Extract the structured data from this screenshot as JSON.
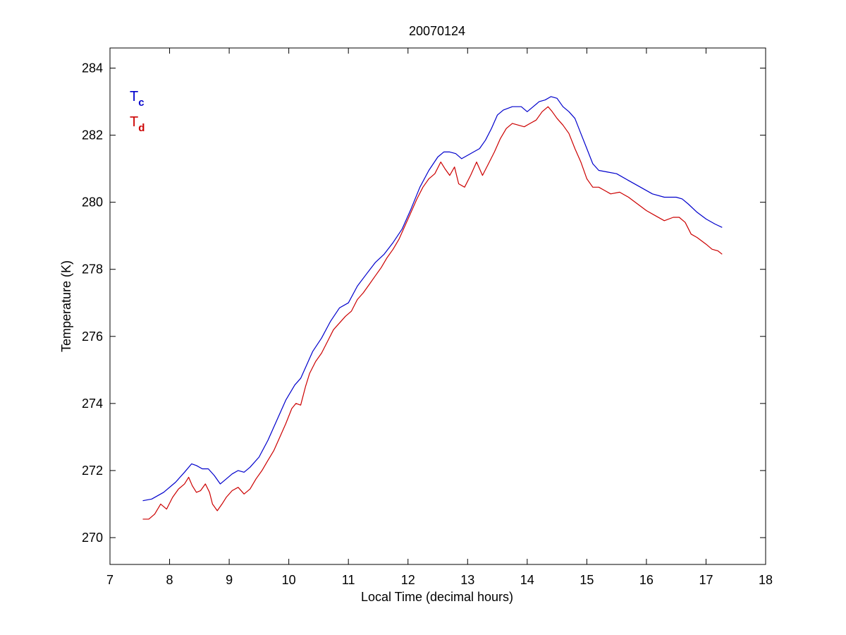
{
  "chart_data": {
    "type": "line",
    "title": "20070124",
    "xlabel": "Local Time (decimal hours)",
    "ylabel": "Temperature (K)",
    "xlim": [
      7,
      18
    ],
    "ylim": [
      269.2,
      284.6
    ],
    "xticks": [
      7,
      8,
      9,
      10,
      11,
      12,
      13,
      14,
      15,
      16,
      17,
      18
    ],
    "yticks": [
      270,
      272,
      274,
      276,
      278,
      280,
      282,
      284
    ],
    "grid": false,
    "legend_position": "top-left",
    "series": [
      {
        "name": "T",
        "subscript": "c",
        "color": "#0000cc",
        "x": [
          7.55,
          7.7,
          7.9,
          8.1,
          8.25,
          8.37,
          8.45,
          8.55,
          8.65,
          8.75,
          8.85,
          8.95,
          9.05,
          9.15,
          9.25,
          9.35,
          9.5,
          9.65,
          9.8,
          9.95,
          10.1,
          10.2,
          10.3,
          10.4,
          10.55,
          10.7,
          10.85,
          11.0,
          11.15,
          11.3,
          11.45,
          11.6,
          11.75,
          11.9,
          12.05,
          12.2,
          12.35,
          12.5,
          12.6,
          12.7,
          12.8,
          12.9,
          13.0,
          13.1,
          13.2,
          13.3,
          13.4,
          13.5,
          13.6,
          13.75,
          13.9,
          14.0,
          14.1,
          14.2,
          14.3,
          14.4,
          14.5,
          14.6,
          14.7,
          14.8,
          14.9,
          15.0,
          15.1,
          15.2,
          15.35,
          15.5,
          15.7,
          15.9,
          16.1,
          16.3,
          16.5,
          16.6,
          16.7,
          16.85,
          17.0,
          17.15,
          17.27
        ],
        "values": [
          271.1,
          271.15,
          271.35,
          271.65,
          271.95,
          272.2,
          272.15,
          272.05,
          272.05,
          271.85,
          271.6,
          271.75,
          271.9,
          272.0,
          271.95,
          272.1,
          272.4,
          272.9,
          273.5,
          274.1,
          274.55,
          274.75,
          275.15,
          275.55,
          275.95,
          276.45,
          276.85,
          277.0,
          277.5,
          277.85,
          278.2,
          278.45,
          278.8,
          279.2,
          279.8,
          280.45,
          280.95,
          281.35,
          281.5,
          281.5,
          281.45,
          281.3,
          281.4,
          281.5,
          281.6,
          281.85,
          282.2,
          282.6,
          282.75,
          282.85,
          282.85,
          282.7,
          282.85,
          283.0,
          283.05,
          283.15,
          283.1,
          282.85,
          282.7,
          282.5,
          282.05,
          281.6,
          281.15,
          280.95,
          280.9,
          280.85,
          280.65,
          280.45,
          280.25,
          280.15,
          280.15,
          280.1,
          279.95,
          279.7,
          279.5,
          279.35,
          279.25
        ]
      },
      {
        "name": "T",
        "subscript": "d",
        "color": "#cc0000",
        "x": [
          7.55,
          7.65,
          7.75,
          7.85,
          7.95,
          8.05,
          8.15,
          8.25,
          8.32,
          8.38,
          8.45,
          8.52,
          8.6,
          8.67,
          8.72,
          8.8,
          8.88,
          8.95,
          9.05,
          9.15,
          9.25,
          9.35,
          9.45,
          9.55,
          9.65,
          9.75,
          9.85,
          9.95,
          10.05,
          10.12,
          10.2,
          10.28,
          10.35,
          10.45,
          10.55,
          10.65,
          10.75,
          10.85,
          10.95,
          11.05,
          11.15,
          11.25,
          11.35,
          11.45,
          11.55,
          11.65,
          11.75,
          11.85,
          11.95,
          12.05,
          12.15,
          12.25,
          12.35,
          12.45,
          12.55,
          12.62,
          12.7,
          12.78,
          12.85,
          12.95,
          13.05,
          13.15,
          13.25,
          13.35,
          13.45,
          13.55,
          13.65,
          13.75,
          13.85,
          13.95,
          14.05,
          14.15,
          14.25,
          14.35,
          14.42,
          14.5,
          14.6,
          14.7,
          14.8,
          14.9,
          15.0,
          15.1,
          15.2,
          15.3,
          15.4,
          15.55,
          15.7,
          15.85,
          16.0,
          16.15,
          16.3,
          16.45,
          16.55,
          16.65,
          16.75,
          16.85,
          17.0,
          17.1,
          17.2,
          17.27
        ],
        "values": [
          270.55,
          270.55,
          270.7,
          271.0,
          270.85,
          271.2,
          271.45,
          271.6,
          271.8,
          271.55,
          271.35,
          271.4,
          271.6,
          271.35,
          271.0,
          270.8,
          271.0,
          271.2,
          271.4,
          271.5,
          271.3,
          271.45,
          271.75,
          272.0,
          272.3,
          272.6,
          273.0,
          273.4,
          273.85,
          274.0,
          273.95,
          274.5,
          274.9,
          275.25,
          275.5,
          275.85,
          276.2,
          276.4,
          276.6,
          276.75,
          277.1,
          277.3,
          277.55,
          277.8,
          278.05,
          278.35,
          278.6,
          278.9,
          279.3,
          279.7,
          280.1,
          280.45,
          280.7,
          280.85,
          281.2,
          281.0,
          280.8,
          281.05,
          280.55,
          280.45,
          280.8,
          281.2,
          280.8,
          281.15,
          281.5,
          281.9,
          282.2,
          282.35,
          282.3,
          282.25,
          282.35,
          282.45,
          282.7,
          282.85,
          282.7,
          282.5,
          282.3,
          282.05,
          281.6,
          281.2,
          280.7,
          280.45,
          280.45,
          280.35,
          280.25,
          280.3,
          280.15,
          279.95,
          279.75,
          279.6,
          279.45,
          279.55,
          279.55,
          279.4,
          279.05,
          278.95,
          278.75,
          278.6,
          278.55,
          278.45
        ]
      }
    ]
  }
}
